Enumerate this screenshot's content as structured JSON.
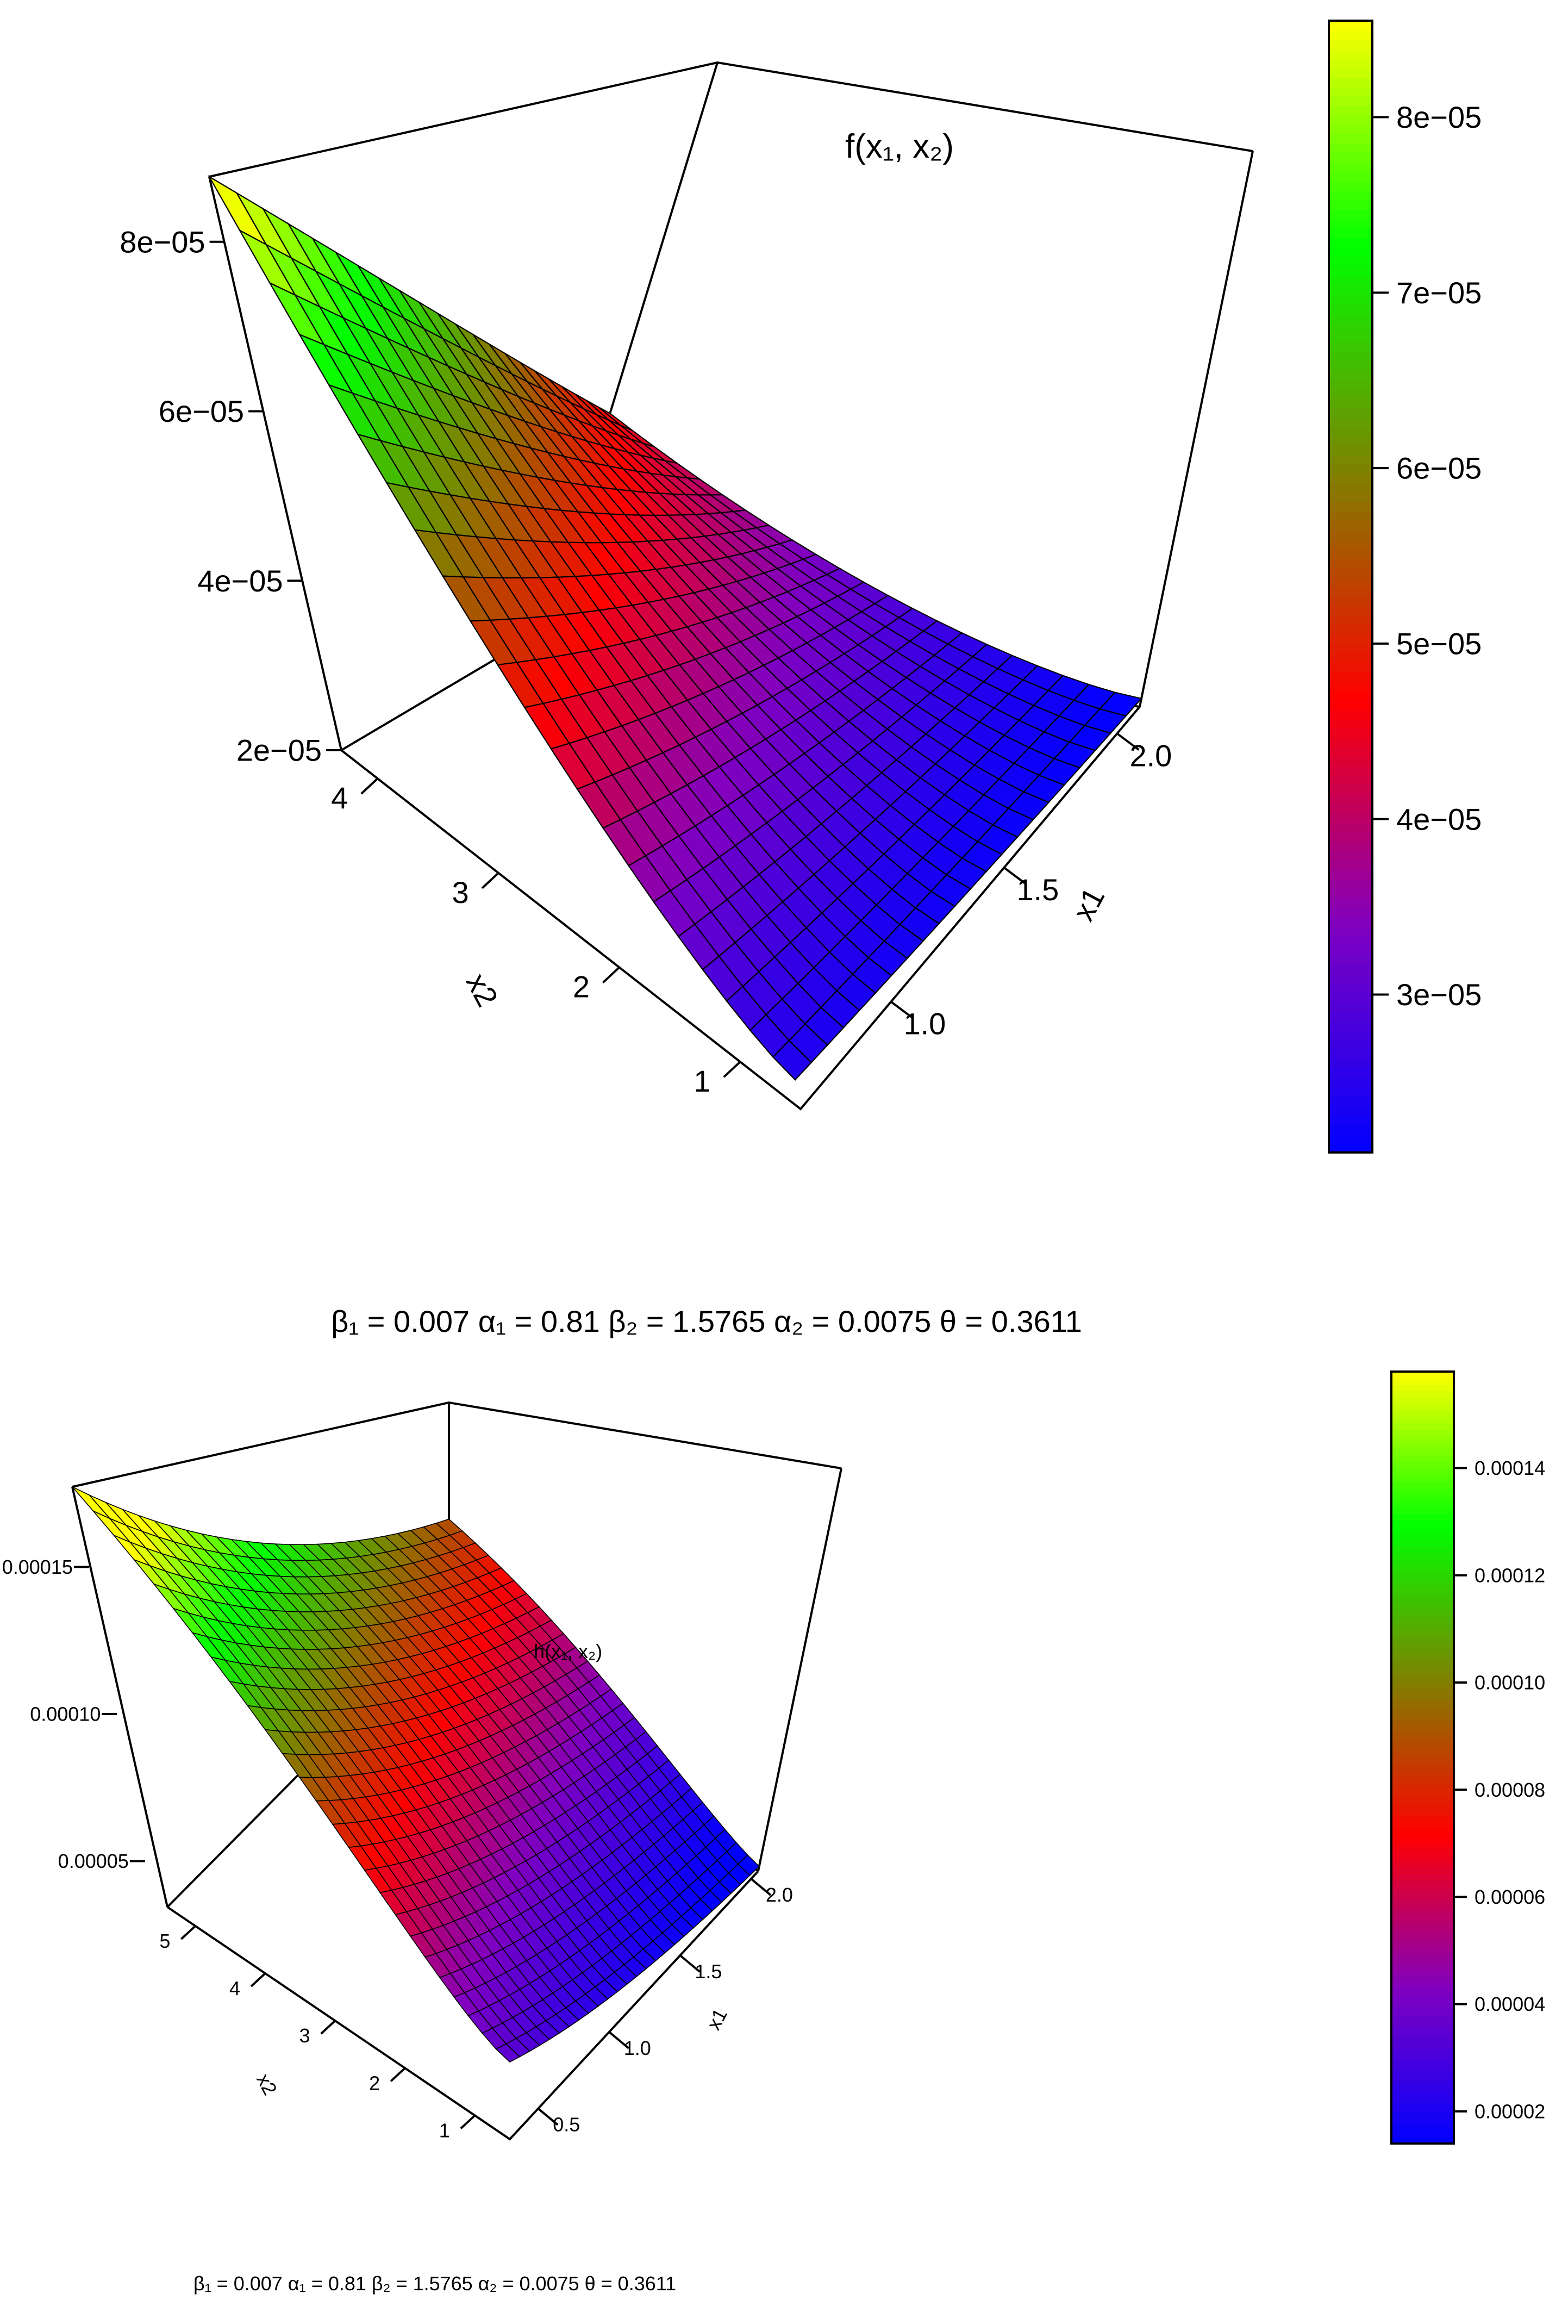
{
  "chart_data": [
    {
      "type": "surface3d",
      "title": "f(x₁, x₂)",
      "xlabel": "x1",
      "ylabel": "x2",
      "zlabel": "",
      "caption": "β₁ = 0.007  α₁ = 0.81  β₂ = 1.5765  α₂ = 0.0075  θ = 0.3611",
      "x1_range": [
        0.6,
        2.1
      ],
      "x2_range": [
        0.5,
        4.3
      ],
      "z_range": [
        2e-05,
        8.8e-05
      ],
      "x1_ticks": [
        1.0,
        1.5,
        2.0
      ],
      "x1_tick_labels": [
        "1.0",
        "1.5",
        "2.0"
      ],
      "x2_ticks": [
        1,
        2,
        3,
        4
      ],
      "x2_tick_labels": [
        "1",
        "2",
        "3",
        "4"
      ],
      "z_ticks": [
        2e-05,
        4e-05,
        6e-05,
        8e-05
      ],
      "z_tick_labels": [
        "2e−05",
        "4e−05",
        "6e−05",
        "8e−05"
      ],
      "surface_corners": {
        "x1_min_x2_min": 2.4e-05,
        "x1_min_x2_max": 8.8e-05,
        "x1_max_x2_min": 2.1e-05,
        "x1_max_x2_max": 4.6e-05
      },
      "colorbar_ticks": [
        3e-05,
        4e-05,
        5e-05,
        6e-05,
        7e-05,
        8e-05
      ],
      "colorbar_tick_labels": [
        "3e−05",
        "4e−05",
        "5e−05",
        "6e−05",
        "7e−05",
        "8e−05"
      ],
      "colorbar_range": [
        2.1e-05,
        8.55e-05
      ],
      "palette": [
        "#0000ff",
        "#8000c0",
        "#ff0000",
        "#808000",
        "#00ff00",
        "#ffff00"
      ]
    },
    {
      "type": "surface3d",
      "title": "h(x₁, x₂)",
      "xlabel": "x1",
      "ylabel": "x2",
      "zlabel": "",
      "caption": "β₁ = 0.007  α₁ = 0.81  β₂ = 1.5765  α₂ = 0.0075  θ = 0.3611",
      "x1_range": [
        0.3,
        2.05
      ],
      "x2_range": [
        0.5,
        5.4
      ],
      "z_range": [
        1e-05,
        0.00018
      ],
      "x1_ticks": [
        0.5,
        1.0,
        1.5,
        2.0
      ],
      "x1_tick_labels": [
        "0.5",
        "1.0",
        "1.5",
        "2.0"
      ],
      "x2_ticks": [
        1,
        2,
        3,
        4,
        5
      ],
      "x2_tick_labels": [
        "1",
        "2",
        "3",
        "4",
        "5"
      ],
      "z_ticks": [
        5e-05,
        0.0001,
        0.00015
      ],
      "z_tick_labels": [
        "0.00005",
        "0.00010",
        "0.00015"
      ],
      "surface_corners": {
        "x1_min_x2_min": 3.5e-05,
        "x1_min_x2_max": 0.00018,
        "x1_max_x2_min": 1.2e-05,
        "x1_max_x2_max": 9e-05
      },
      "colorbar_ticks": [
        2e-05,
        4e-05,
        6e-05,
        8e-05,
        0.0001,
        0.00012,
        0.00014
      ],
      "colorbar_tick_labels": [
        "0.00002",
        "0.00004",
        "0.00006",
        "0.00008",
        "0.00010",
        "0.00012",
        "0.00014"
      ],
      "colorbar_range": [
        1.4e-05,
        0.000158
      ],
      "palette": [
        "#0000ff",
        "#8000c0",
        "#ff0000",
        "#808000",
        "#00ff00",
        "#ffff00"
      ]
    }
  ]
}
